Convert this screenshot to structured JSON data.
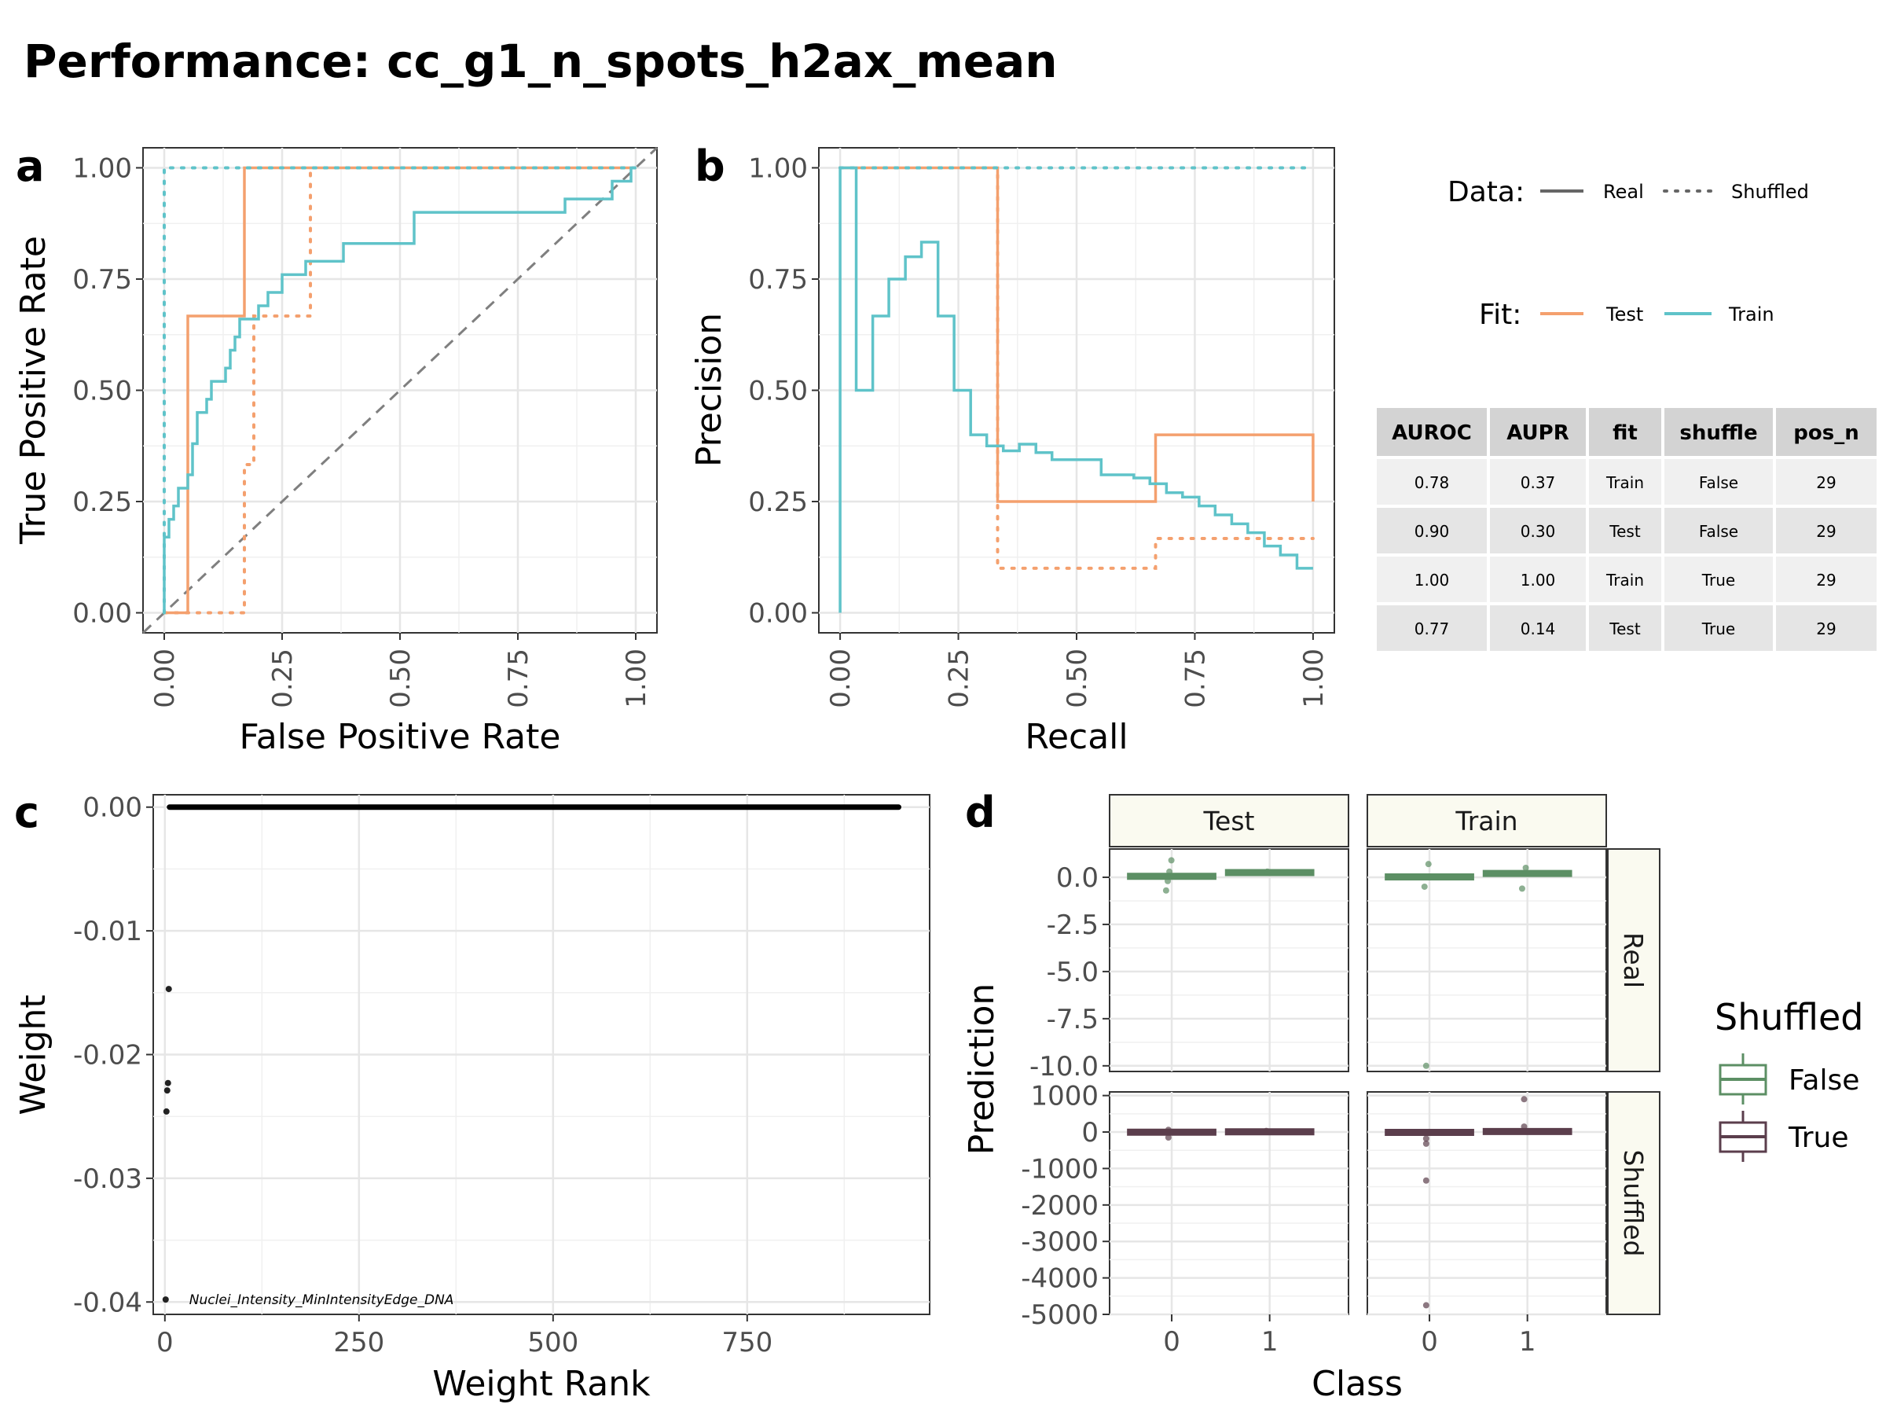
{
  "title": "Performance: cc_g1_n_spots_h2ax_mean",
  "colors": {
    "test": "#F4A06E",
    "train": "#5FC3C9",
    "diag": "#7f7f7f",
    "false_box": "#5C8F64",
    "true_box": "#5B3E4C",
    "strip_bg": "#FAFAF0"
  },
  "panel_a": {
    "letter": "a",
    "xlabel": "False Positive Rate",
    "ylabel": "True Positive Rate",
    "xticks": [
      "0.00",
      "0.25",
      "0.50",
      "0.75",
      "1.00"
    ],
    "yticks": [
      "0.00",
      "0.25",
      "0.50",
      "0.75",
      "1.00"
    ]
  },
  "panel_b": {
    "letter": "b",
    "xlabel": "Recall",
    "ylabel": "Precision",
    "xticks": [
      "0.00",
      "0.25",
      "0.50",
      "0.75",
      "1.00"
    ],
    "yticks": [
      "0.00",
      "0.25",
      "0.50",
      "0.75",
      "1.00"
    ]
  },
  "legend": {
    "data_title": "Data:",
    "data_items": [
      "Real",
      "Shuffled"
    ],
    "fit_title": "Fit:",
    "fit_items": [
      "Test",
      "Train"
    ],
    "shuffled_title": "Shuffled",
    "shuffled_items": [
      "False",
      "True"
    ]
  },
  "metrics_table": {
    "headers": [
      "AUROC",
      "AUPR",
      "fit",
      "shuffle",
      "pos_n"
    ],
    "rows": [
      [
        "0.78",
        "0.37",
        "Train",
        "False",
        "29"
      ],
      [
        "0.90",
        "0.30",
        "Test",
        "False",
        "29"
      ],
      [
        "1.00",
        "1.00",
        "Train",
        "True",
        "29"
      ],
      [
        "0.77",
        "0.14",
        "Test",
        "True",
        "29"
      ]
    ]
  },
  "panel_c": {
    "letter": "c",
    "xlabel": "Weight Rank",
    "ylabel": "Weight",
    "xticks": [
      "0",
      "250",
      "500",
      "750"
    ],
    "yticks": [
      "0.00",
      "-0.01",
      "-0.02",
      "-0.03",
      "-0.04"
    ],
    "annotation": "Nuclei_Intensity_MinIntensityEdge_DNA"
  },
  "panel_d": {
    "letter": "d",
    "xlabel": "Class",
    "ylabel": "Prediction",
    "col_strips": [
      "Test",
      "Train"
    ],
    "row_strips": [
      "Real",
      "Shuffled"
    ],
    "xticks": [
      "0",
      "1"
    ],
    "yticks_real": [
      "0.0",
      "-2.5",
      "-5.0",
      "-7.5",
      "-10.0"
    ],
    "yticks_shuffled": [
      "1000",
      "0",
      "-1000",
      "-2000",
      "-3000",
      "-4000",
      "-5000"
    ]
  },
  "chart_data": [
    {
      "type": "line",
      "panel": "a",
      "xlabel": "False Positive Rate",
      "ylabel": "True Positive Rate",
      "xlim": [
        0,
        1
      ],
      "ylim": [
        0,
        1
      ],
      "grid": true,
      "series": [
        {
          "name": "Test",
          "data": "Real",
          "points": [
            [
              0,
              0
            ],
            [
              0.05,
              0
            ],
            [
              0.05,
              0.667
            ],
            [
              0.17,
              0.667
            ],
            [
              0.17,
              1
            ],
            [
              1,
              1
            ]
          ]
        },
        {
          "name": "Test",
          "data": "Shuffled",
          "points": [
            [
              0,
              0
            ],
            [
              0.17,
              0
            ],
            [
              0.17,
              0.333
            ],
            [
              0.19,
              0.333
            ],
            [
              0.19,
              0.667
            ],
            [
              0.31,
              0.667
            ],
            [
              0.31,
              1
            ],
            [
              1,
              1
            ]
          ]
        },
        {
          "name": "Train",
          "data": "Real",
          "points": [
            [
              0,
              0
            ],
            [
              0,
              0.17
            ],
            [
              0.01,
              0.17
            ],
            [
              0.01,
              0.21
            ],
            [
              0.02,
              0.21
            ],
            [
              0.02,
              0.24
            ],
            [
              0.03,
              0.24
            ],
            [
              0.03,
              0.28
            ],
            [
              0.05,
              0.28
            ],
            [
              0.05,
              0.31
            ],
            [
              0.06,
              0.31
            ],
            [
              0.06,
              0.38
            ],
            [
              0.07,
              0.38
            ],
            [
              0.07,
              0.45
            ],
            [
              0.09,
              0.45
            ],
            [
              0.09,
              0.48
            ],
            [
              0.1,
              0.48
            ],
            [
              0.1,
              0.52
            ],
            [
              0.13,
              0.52
            ],
            [
              0.13,
              0.55
            ],
            [
              0.14,
              0.55
            ],
            [
              0.14,
              0.59
            ],
            [
              0.15,
              0.59
            ],
            [
              0.15,
              0.62
            ],
            [
              0.16,
              0.62
            ],
            [
              0.16,
              0.66
            ],
            [
              0.2,
              0.66
            ],
            [
              0.2,
              0.69
            ],
            [
              0.22,
              0.69
            ],
            [
              0.22,
              0.72
            ],
            [
              0.25,
              0.72
            ],
            [
              0.25,
              0.76
            ],
            [
              0.3,
              0.76
            ],
            [
              0.3,
              0.79
            ],
            [
              0.38,
              0.79
            ],
            [
              0.38,
              0.83
            ],
            [
              0.53,
              0.83
            ],
            [
              0.53,
              0.86
            ],
            [
              0.53,
              0.9
            ],
            [
              0.85,
              0.9
            ],
            [
              0.85,
              0.93
            ],
            [
              0.95,
              0.93
            ],
            [
              0.95,
              0.97
            ],
            [
              0.99,
              0.97
            ],
            [
              0.99,
              1
            ],
            [
              1,
              1
            ]
          ]
        },
        {
          "name": "Train",
          "data": "Shuffled",
          "points": [
            [
              0,
              0
            ],
            [
              0,
              1
            ],
            [
              1,
              1
            ]
          ]
        }
      ]
    },
    {
      "type": "line",
      "panel": "b",
      "xlabel": "Recall",
      "ylabel": "Precision",
      "xlim": [
        0,
        1
      ],
      "ylim": [
        0,
        1
      ],
      "grid": true,
      "series": [
        {
          "name": "Test",
          "data": "Real",
          "points": [
            [
              0,
              1
            ],
            [
              0.333,
              1
            ],
            [
              0.333,
              0.25
            ],
            [
              0.667,
              0.25
            ],
            [
              0.667,
              0.4
            ],
            [
              1,
              0.4
            ],
            [
              1,
              0.25
            ]
          ]
        },
        {
          "name": "Test",
          "data": "Shuffled",
          "points": [
            [
              0,
              1
            ],
            [
              0.333,
              1
            ],
            [
              0.333,
              0.1
            ],
            [
              0.667,
              0.1
            ],
            [
              0.667,
              0.167
            ],
            [
              1,
              0.167
            ]
          ]
        },
        {
          "name": "Train",
          "data": "Real",
          "points": [
            [
              0,
              0
            ],
            [
              0,
              1
            ],
            [
              0.034,
              1
            ],
            [
              0.034,
              0.5
            ],
            [
              0.069,
              0.5
            ],
            [
              0.069,
              0.667
            ],
            [
              0.103,
              0.667
            ],
            [
              0.103,
              0.75
            ],
            [
              0.138,
              0.75
            ],
            [
              0.138,
              0.8
            ],
            [
              0.172,
              0.8
            ],
            [
              0.172,
              0.833
            ],
            [
              0.207,
              0.833
            ],
            [
              0.207,
              0.667
            ],
            [
              0.241,
              0.667
            ],
            [
              0.241,
              0.5
            ],
            [
              0.276,
              0.5
            ],
            [
              0.276,
              0.4
            ],
            [
              0.31,
              0.4
            ],
            [
              0.31,
              0.375
            ],
            [
              0.345,
              0.375
            ],
            [
              0.345,
              0.364
            ],
            [
              0.379,
              0.364
            ],
            [
              0.379,
              0.379
            ],
            [
              0.414,
              0.379
            ],
            [
              0.414,
              0.36
            ],
            [
              0.448,
              0.36
            ],
            [
              0.448,
              0.344
            ],
            [
              0.552,
              0.344
            ],
            [
              0.552,
              0.31
            ],
            [
              0.621,
              0.31
            ],
            [
              0.621,
              0.303
            ],
            [
              0.655,
              0.303
            ],
            [
              0.655,
              0.29
            ],
            [
              0.69,
              0.29
            ],
            [
              0.69,
              0.27
            ],
            [
              0.724,
              0.27
            ],
            [
              0.724,
              0.26
            ],
            [
              0.759,
              0.26
            ],
            [
              0.759,
              0.24
            ],
            [
              0.793,
              0.24
            ],
            [
              0.793,
              0.22
            ],
            [
              0.828,
              0.22
            ],
            [
              0.828,
              0.2
            ],
            [
              0.862,
              0.2
            ],
            [
              0.862,
              0.18
            ],
            [
              0.897,
              0.18
            ],
            [
              0.897,
              0.15
            ],
            [
              0.931,
              0.15
            ],
            [
              0.931,
              0.13
            ],
            [
              0.966,
              0.13
            ],
            [
              0.966,
              0.1
            ],
            [
              1,
              0.1
            ]
          ]
        },
        {
          "name": "Train",
          "data": "Shuffled",
          "points": [
            [
              0,
              1
            ],
            [
              1,
              1
            ]
          ]
        }
      ]
    },
    {
      "type": "scatter",
      "panel": "c",
      "xlabel": "Weight Rank",
      "ylabel": "Weight",
      "xlim": [
        -15,
        985
      ],
      "ylim": [
        -0.041,
        0.001
      ],
      "grid": true,
      "points": [
        [
          1,
          -0.0398
        ],
        [
          2,
          -0.0246
        ],
        [
          3,
          -0.0229
        ],
        [
          4,
          -0.0223
        ],
        [
          5,
          -0.0147
        ]
      ],
      "flat_line": {
        "x_from": 6,
        "x_to": 945,
        "y": 0
      },
      "annotation": {
        "text": "Nuclei_Intensity_MinIntensityEdge_DNA",
        "x": 1,
        "y": -0.0398
      }
    },
    {
      "type": "box",
      "panel": "d",
      "xlabel": "Class",
      "ylabel": "Prediction",
      "categories": [
        "0",
        "1"
      ],
      "facets": [
        {
          "col": "Test",
          "row": "Real",
          "ylim": [
            -10.3,
            1.5
          ],
          "shuffled": "False",
          "boxes": [
            {
              "class": "0",
              "median": 0.05
            },
            {
              "class": "1",
              "median": 0.25
            }
          ],
          "points": [
            [
              0,
              0.9
            ],
            [
              0,
              -0.7
            ],
            [
              0,
              0.3
            ],
            [
              0,
              -0.2
            ],
            [
              1,
              0.3
            ]
          ]
        },
        {
          "col": "Train",
          "row": "Real",
          "ylim": [
            -10.3,
            1.5
          ],
          "shuffled": "False",
          "boxes": [
            {
              "class": "0",
              "median": 0.02
            },
            {
              "class": "1",
              "median": 0.2
            }
          ],
          "points": [
            [
              0,
              -10.0
            ],
            [
              0,
              0.7
            ],
            [
              0,
              -0.5
            ],
            [
              1,
              0.5
            ],
            [
              1,
              -0.6
            ]
          ]
        },
        {
          "col": "Test",
          "row": "Shuffled",
          "ylim": [
            -5000,
            1100
          ],
          "shuffled": "True",
          "boxes": [
            {
              "class": "0",
              "median": -5
            },
            {
              "class": "1",
              "median": 5
            }
          ],
          "points": [
            [
              0,
              -150
            ],
            [
              0,
              60
            ],
            [
              1,
              30
            ]
          ]
        },
        {
          "col": "Train",
          "row": "Shuffled",
          "ylim": [
            -5000,
            1100
          ],
          "shuffled": "True",
          "boxes": [
            {
              "class": "0",
              "median": -10
            },
            {
              "class": "1",
              "median": 15
            }
          ],
          "points": [
            [
              0,
              -4750
            ],
            [
              0,
              -1330
            ],
            [
              0,
              -320
            ],
            [
              0,
              -180
            ],
            [
              1,
              900
            ],
            [
              1,
              150
            ]
          ]
        }
      ]
    }
  ]
}
